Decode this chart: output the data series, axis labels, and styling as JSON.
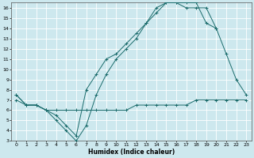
{
  "xlabel": "Humidex (Indice chaleur)",
  "xlim": [
    -0.5,
    23.5
  ],
  "ylim": [
    3,
    16.5
  ],
  "yticks": [
    3,
    4,
    5,
    6,
    7,
    8,
    9,
    10,
    11,
    12,
    13,
    14,
    15,
    16
  ],
  "xticks": [
    0,
    1,
    2,
    3,
    4,
    5,
    6,
    7,
    8,
    9,
    10,
    11,
    12,
    13,
    14,
    15,
    16,
    17,
    18,
    19,
    20,
    21,
    22,
    23
  ],
  "bg_color": "#cde8ee",
  "line_color": "#1a6b6b",
  "grid_color": "#b0d8e0",
  "line1_x": [
    0,
    1,
    2,
    3,
    4,
    5,
    6,
    7,
    8,
    9,
    10,
    11,
    12,
    13,
    14,
    15,
    16,
    17,
    18,
    19,
    20,
    21,
    22,
    23
  ],
  "line1_y": [
    7.0,
    6.5,
    6.5,
    6.0,
    6.0,
    6.0,
    6.0,
    6.0,
    6.0,
    6.0,
    6.0,
    6.0,
    6.5,
    6.5,
    6.5,
    6.5,
    6.5,
    6.5,
    7.0,
    7.0,
    7.0,
    7.0,
    7.0,
    7.0
  ],
  "line2_x": [
    0,
    1,
    2,
    3,
    4,
    5,
    6,
    7,
    8,
    9,
    10,
    11,
    12,
    13,
    14,
    15,
    16,
    17,
    18,
    19,
    20,
    21,
    22,
    23
  ],
  "line2_y": [
    7.5,
    6.5,
    6.5,
    6.0,
    5.0,
    4.0,
    3.0,
    4.5,
    7.5,
    9.5,
    11.0,
    12.0,
    13.0,
    14.5,
    15.5,
    16.5,
    16.5,
    16.0,
    16.0,
    16.0,
    14.0,
    11.5,
    9.0,
    7.5
  ],
  "line3_x": [
    0,
    1,
    2,
    3,
    4,
    5,
    6,
    7,
    8,
    9,
    10,
    11,
    12,
    13,
    14,
    15,
    16,
    17,
    18,
    19,
    20
  ],
  "line3_y": [
    7.5,
    6.5,
    6.5,
    6.0,
    5.5,
    4.5,
    3.5,
    8.0,
    9.5,
    11.0,
    11.5,
    12.5,
    13.5,
    14.5,
    16.0,
    16.5,
    16.5,
    16.5,
    16.5,
    14.5,
    14.0
  ]
}
